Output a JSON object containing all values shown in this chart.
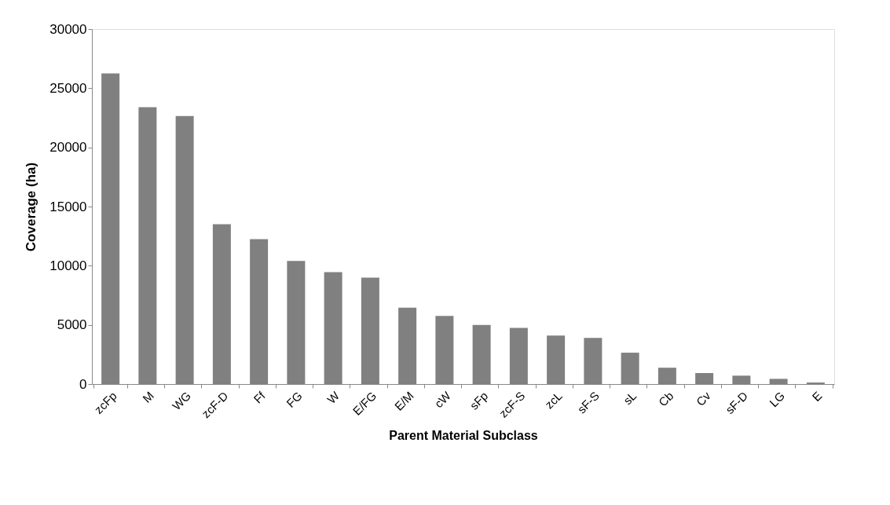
{
  "chart_data": {
    "type": "bar",
    "xlabel": "Parent Material Subclass",
    "ylabel": "Coverage (ha)",
    "categories": [
      "zcFp",
      "M",
      "WG",
      "zcF-D",
      "Ff",
      "FG",
      "W",
      "E/FG",
      "E/M",
      "cW",
      "sFp",
      "zcF-S",
      "zcL",
      "sF-S",
      "sL",
      "Cb",
      "Cv",
      "sF-D",
      "LG",
      "E"
    ],
    "values": [
      26250,
      23400,
      22650,
      13500,
      12250,
      10400,
      9450,
      9000,
      6450,
      5750,
      5000,
      4750,
      4100,
      3900,
      2650,
      1380,
      930,
      710,
      440,
      130
    ],
    "color": "#808080",
    "ylim": [
      0,
      30000
    ],
    "yticks": [
      0,
      5000,
      10000,
      15000,
      20000,
      25000,
      30000
    ],
    "grid": false
  }
}
